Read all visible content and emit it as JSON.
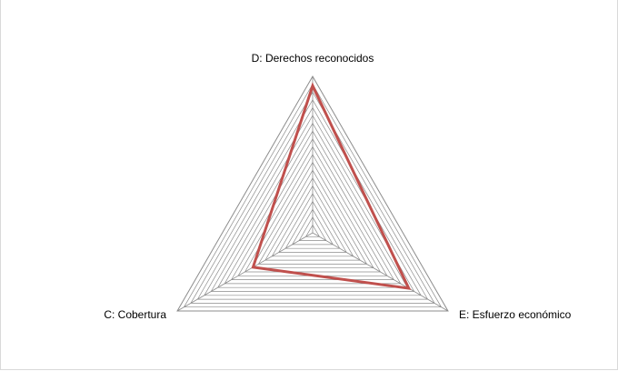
{
  "chart_data": {
    "type": "radar",
    "title": "",
    "axes": [
      "D: Derechos reconocidos",
      "E: Esfuerzo económico",
      "C: Cobertura"
    ],
    "series": [
      {
        "values": [
          0.94,
          0.71,
          0.44
        ],
        "color": "#c0504d"
      }
    ],
    "range": [
      0,
      1
    ],
    "gridlines": 20,
    "grid_color": "#8c8c8c",
    "axis_color": "#8c8c8c",
    "legend": "none"
  }
}
